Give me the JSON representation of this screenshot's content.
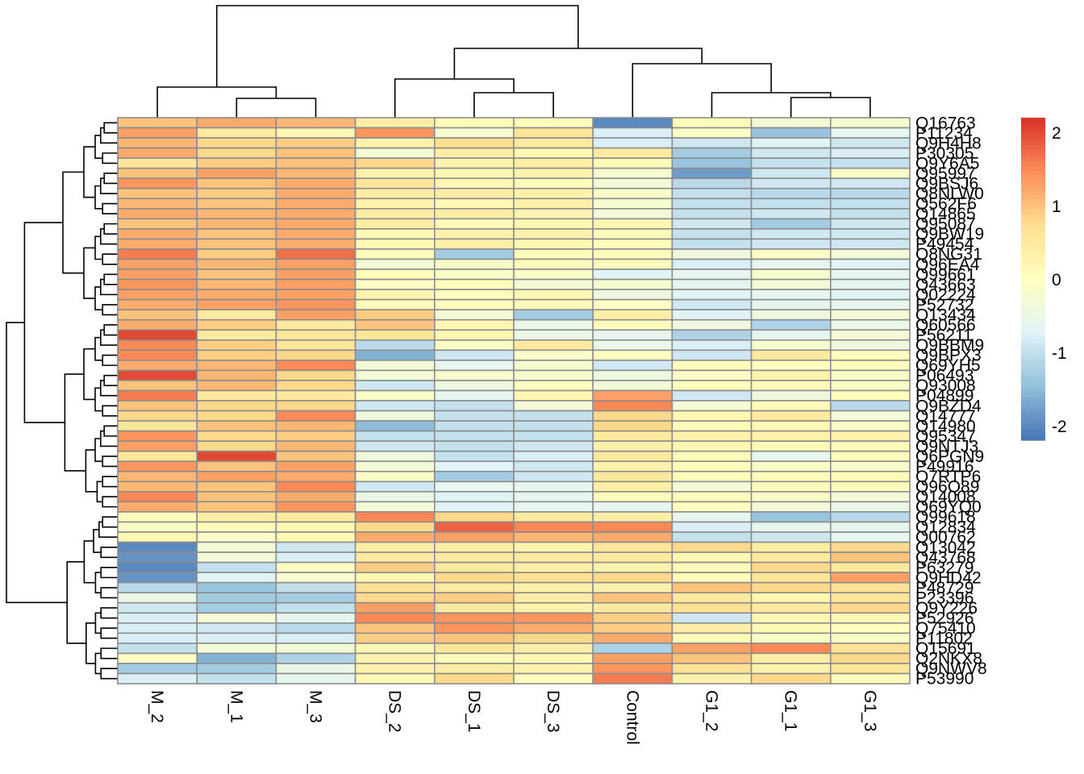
{
  "chart_data": {
    "type": "heatmap",
    "title": "",
    "columns": [
      "M_2",
      "M_1",
      "M_3",
      "DS_2",
      "DS_1",
      "DS_3",
      "Control",
      "G1_2",
      "G1_1",
      "G1_3"
    ],
    "rows": [
      "Q16763",
      "P11234",
      "Q9H4H8",
      "P30305",
      "Q9Y6A5",
      "Q95997",
      "Q9BSJ6",
      "Q8NLW0",
      "Q562F6",
      "Q14865",
      "Q95087",
      "Q9BW19",
      "P49454",
      "Q8NG31",
      "Q96EA4",
      "Q99661",
      "Q43663",
      "Q02224",
      "P52732",
      "Q13434",
      "Q60566",
      "P56211",
      "Q9BBM9",
      "Q9BPX3",
      "Q69YH5",
      "P06493",
      "Q93008",
      "P04899",
      "Q9BZD4",
      "Q14777",
      "Q14980",
      "Q95347",
      "Q9NTJ3",
      "Q6PGN9",
      "P49916",
      "Q7RTP6",
      "Q96Q89",
      "Q14008",
      "Q69YQ0",
      "Q99618",
      "Q12834",
      "Q00762",
      "Q13042",
      "Q43768",
      "P63279",
      "Q9HD42",
      "P48729",
      "P23396",
      "Q9Y226",
      "P52926",
      "Q75410",
      "P11802",
      "Q15691",
      "Q2NKX8",
      "Q9NWV8",
      "P53990"
    ],
    "values": [
      [
        1.0,
        1.2,
        1.1,
        0.4,
        0.1,
        0.05,
        -2.0,
        0.1,
        -0.3,
        -0.2
      ],
      [
        1.3,
        0.5,
        0.2,
        1.4,
        -0.2,
        0.6,
        -0.8,
        -0.1,
        -1.4,
        -0.6
      ],
      [
        1.1,
        0.8,
        0.9,
        0.3,
        0.7,
        0.5,
        -0.8,
        -0.9,
        -0.7,
        -0.9
      ],
      [
        1.2,
        0.8,
        1.0,
        -0.3,
        0.4,
        0.2,
        0.5,
        -1.3,
        -0.9,
        -0.8
      ],
      [
        0.6,
        0.9,
        1.0,
        0.8,
        0.3,
        0.4,
        0.1,
        -1.4,
        -1.0,
        -1.0
      ],
      [
        1.0,
        1.3,
        1.1,
        0.3,
        0.2,
        0.3,
        -0.2,
        -1.8,
        -0.9,
        -0.1
      ],
      [
        1.4,
        1.0,
        1.2,
        0.6,
        0.2,
        0.1,
        -0.3,
        -1.1,
        -0.9,
        -0.9
      ],
      [
        1.0,
        0.9,
        1.2,
        0.4,
        0.4,
        0.3,
        -0.1,
        -1.0,
        -1.1,
        -1.1
      ],
      [
        1.1,
        1.0,
        1.2,
        0.3,
        0.2,
        0.35,
        -0.2,
        -1.0,
        -1.0,
        -1.0
      ],
      [
        1.2,
        1.1,
        1.2,
        0.4,
        0.4,
        0.25,
        -0.3,
        -1.0,
        -0.9,
        -1.0
      ],
      [
        1.0,
        1.1,
        1.2,
        0.4,
        0.1,
        0.2,
        0.2,
        -0.9,
        -1.3,
        -0.9
      ],
      [
        1.2,
        1.0,
        1.2,
        0.15,
        0.35,
        0.3,
        0.05,
        -1.0,
        -0.9,
        -0.9
      ],
      [
        1.2,
        1.0,
        1.2,
        0.15,
        0.35,
        0.2,
        0.1,
        -1.0,
        -0.9,
        -0.9
      ],
      [
        1.6,
        0.9,
        1.7,
        0.05,
        -1.3,
        0.1,
        0.1,
        -0.4,
        -0.1,
        -0.3
      ],
      [
        1.3,
        1.1,
        1.3,
        -0.3,
        -0.1,
        0.05,
        0.1,
        -0.8,
        -0.6,
        -0.7
      ],
      [
        1.3,
        1.0,
        1.3,
        0.1,
        -0.1,
        -0.1,
        -0.7,
        -0.6,
        -0.2,
        -0.6
      ],
      [
        1.4,
        1.1,
        1.3,
        -0.05,
        0.05,
        -0.3,
        -0.2,
        -0.6,
        -0.3,
        -0.6
      ],
      [
        1.3,
        1.2,
        1.3,
        0.25,
        0.05,
        0.2,
        -0.4,
        -0.7,
        -0.6,
        -0.7
      ],
      [
        1.2,
        1.3,
        1.4,
        0.05,
        0.05,
        0.05,
        -0.05,
        -0.9,
        -0.6,
        -0.6
      ],
      [
        1.0,
        0.5,
        1.3,
        0.9,
        -0.3,
        -1.3,
        0.4,
        -0.7,
        -0.4,
        -0.3
      ],
      [
        1.2,
        0.9,
        0.5,
        1.0,
        0.2,
        -0.5,
        0.1,
        -0.4,
        -1.2,
        -0.5
      ],
      [
        2.0,
        0.5,
        0.6,
        0.6,
        0.2,
        -0.5,
        -0.6,
        -1.2,
        -0.6,
        -0.3
      ],
      [
        1.5,
        0.9,
        0.6,
        -1.1,
        -0.1,
        0.5,
        -0.5,
        -0.8,
        -0.2,
        -0.4
      ],
      [
        1.5,
        0.9,
        0.8,
        -1.6,
        -0.9,
        -0.1,
        0.0,
        -0.9,
        0.5,
        0.05
      ],
      [
        1.2,
        1.1,
        1.5,
        -0.3,
        -0.6,
        -0.2,
        -0.9,
        0.1,
        0.0,
        0.05
      ],
      [
        2.0,
        1.1,
        0.8,
        -0.3,
        -0.2,
        -0.2,
        -0.4,
        -0.1,
        0.3,
        -0.1
      ],
      [
        1.0,
        1.1,
        0.8,
        -0.9,
        -0.4,
        0.0,
        -0.3,
        0.05,
        0.05,
        -0.1
      ],
      [
        1.6,
        0.5,
        0.5,
        -0.1,
        -0.6,
        0.2,
        1.3,
        -0.9,
        -0.4,
        0.05
      ],
      [
        1.0,
        0.8,
        0.8,
        -0.9,
        -1.0,
        -0.3,
        1.5,
        -0.3,
        0.1,
        -1.1
      ],
      [
        0.8,
        0.8,
        1.5,
        -0.4,
        -1.0,
        -1.0,
        0.8,
        0.2,
        0.5,
        -0.3
      ],
      [
        0.6,
        1.0,
        1.1,
        -1.5,
        -1.0,
        -1.0,
        0.8,
        0.1,
        0.15,
        -0.1
      ],
      [
        1.4,
        0.8,
        0.9,
        -1.0,
        -1.0,
        -1.0,
        0.5,
        0.3,
        0.3,
        0.3
      ],
      [
        1.3,
        0.8,
        1.1,
        -0.9,
        -1.0,
        -0.9,
        0.35,
        0.2,
        0.15,
        0.1
      ],
      [
        0.6,
        2.0,
        1.0,
        -0.4,
        -1.0,
        -0.8,
        0.5,
        0.1,
        -0.6,
        0.05
      ],
      [
        1.4,
        1.0,
        1.3,
        -0.3,
        -0.7,
        -0.9,
        0.3,
        0.05,
        -0.1,
        -0.1
      ],
      [
        1.1,
        1.3,
        1.2,
        -0.1,
        -1.3,
        -0.9,
        0.5,
        0.05,
        0.05,
        0.1
      ],
      [
        1.1,
        1.0,
        1.5,
        -0.9,
        -0.6,
        -0.6,
        0.4,
        -0.3,
        0.05,
        0.05
      ],
      [
        1.5,
        1.0,
        1.2,
        -0.5,
        -0.7,
        -0.6,
        0.05,
        0.05,
        -0.1,
        -0.3
      ],
      [
        1.2,
        1.0,
        1.4,
        -0.3,
        -0.7,
        -0.6,
        -0.6,
        0.0,
        -0.3,
        -0.5
      ],
      [
        0.05,
        0.4,
        0.5,
        1.5,
        0.8,
        0.5,
        0.4,
        -0.6,
        -1.4,
        -1.1
      ],
      [
        -0.1,
        0.1,
        0.15,
        0.8,
        1.8,
        1.5,
        1.5,
        -0.8,
        -0.6,
        -0.6
      ],
      [
        0.2,
        -0.1,
        0.2,
        1.2,
        1.3,
        1.1,
        1.2,
        -1.0,
        -0.9,
        -0.6
      ],
      [
        -2.0,
        -0.3,
        -0.9,
        0.4,
        0.4,
        0.3,
        0.6,
        0.8,
        0.4,
        0.8
      ],
      [
        -1.9,
        -0.3,
        -0.8,
        0.5,
        0.5,
        0.5,
        0.5,
        0.2,
        0.5,
        1.0
      ],
      [
        -2.0,
        -1.0,
        -0.05,
        0.9,
        0.5,
        0.4,
        0.3,
        0.1,
        0.8,
        0.5
      ],
      [
        -1.9,
        -0.7,
        -0.2,
        0.2,
        0.8,
        0.7,
        0.8,
        0.1,
        0.6,
        1.3
      ],
      [
        -1.1,
        -1.4,
        -1.0,
        0.7,
        0.5,
        0.35,
        0.3,
        1.0,
        0.8,
        0.7
      ],
      [
        -0.5,
        -1.3,
        -1.3,
        0.8,
        0.9,
        0.4,
        1.0,
        0.5,
        0.2,
        0.6
      ],
      [
        -0.9,
        -1.3,
        -1.0,
        1.3,
        0.5,
        0.3,
        0.5,
        0.7,
        0.5,
        0.8
      ],
      [
        -0.8,
        -0.3,
        -0.6,
        1.5,
        1.4,
        1.4,
        0.9,
        -0.9,
        0.15,
        0.2
      ],
      [
        -0.8,
        -0.9,
        -1.1,
        1.0,
        1.4,
        1.2,
        0.9,
        0.4,
        0.15,
        0.1
      ],
      [
        -0.8,
        -0.8,
        -0.8,
        0.9,
        1.0,
        0.8,
        1.2,
        0.1,
        -0.1,
        -0.1
      ],
      [
        -1.0,
        -0.3,
        -0.3,
        0.2,
        0.6,
        0.4,
        -1.2,
        1.3,
        1.5,
        0.7
      ],
      [
        -0.05,
        -1.6,
        -1.2,
        0.3,
        0.1,
        0.2,
        1.3,
        1.0,
        0.4,
        0.8
      ],
      [
        -1.3,
        -1.3,
        -0.5,
        0.3,
        0.4,
        0.3,
        1.4,
        0.7,
        0.3,
        0.6
      ],
      [
        -0.8,
        -1.0,
        -0.6,
        0.15,
        0.8,
        0.05,
        1.6,
        0.3,
        0.8,
        0.1
      ]
    ],
    "color_scale": {
      "min": -2.2,
      "max": 2.2,
      "ticks": [
        2,
        1,
        0,
        -1,
        -2
      ],
      "tick_labels": [
        "2",
        "1",
        "0",
        "-1",
        "-2"
      ],
      "colors": [
        "#4575b4",
        "#91bfdb",
        "#e0f3f8",
        "#ffffbf",
        "#fee090",
        "#fc8d59",
        "#d73027"
      ],
      "legend_position": "right"
    },
    "cell_border_color": "#8c8c8c",
    "column_dendrogram": true,
    "row_dendrogram": true,
    "grid": false,
    "xlabel": "",
    "ylabel": ""
  }
}
